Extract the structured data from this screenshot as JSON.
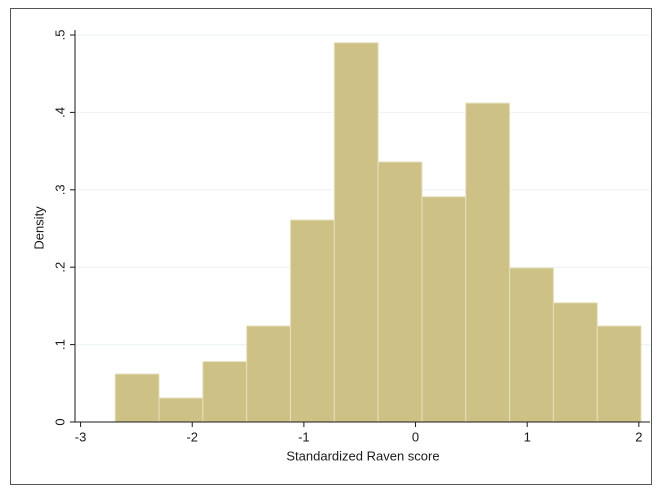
{
  "chart_data": {
    "type": "histogram",
    "xlabel": "Standardized Raven score",
    "ylabel": "Density",
    "bins": [
      -2.69,
      -2.2975,
      -1.905,
      -1.5125,
      -1.12,
      -0.7275,
      -0.335,
      0.0575,
      0.45,
      0.8425,
      1.235,
      1.6275,
      2.02
    ],
    "values": [
      0.062,
      0.031,
      0.078,
      0.124,
      0.261,
      0.49,
      0.336,
      0.291,
      0.412,
      0.199,
      0.154,
      0.124
    ],
    "color": "#cdc186",
    "xlim": [
      -3.05,
      2.1
    ],
    "xticks": [
      -3,
      -2,
      -1,
      0,
      1,
      2
    ],
    "ylim": [
      0,
      0.5
    ],
    "yticks": [
      0,
      {
        "value": 0.1,
        "label": ".1"
      },
      {
        "value": 0.2,
        "label": ".2"
      },
      {
        "value": 0.3,
        "label": ".3"
      },
      {
        "value": 0.4,
        "label": ".4"
      },
      {
        "value": 0.5,
        "label": ".5"
      }
    ],
    "grid": true
  }
}
